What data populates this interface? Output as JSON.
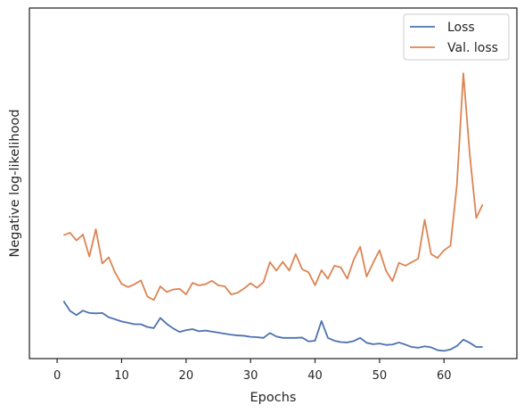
{
  "chart_data": {
    "type": "line",
    "title": "",
    "xlabel": "Epochs",
    "ylabel": "Negative log-likelihood",
    "xlim": [
      -4.3,
      71.3
    ],
    "ylim": [
      0,
      100
    ],
    "xticks": [
      0,
      10,
      20,
      30,
      40,
      50,
      60
    ],
    "yticks_visible": false,
    "grid": false,
    "legend": "top-right",
    "series": [
      {
        "name": "Loss",
        "color": "#4c72b0",
        "x": [
          1,
          2,
          3,
          4,
          5,
          6,
          7,
          8,
          9,
          10,
          11,
          12,
          13,
          14,
          15,
          16,
          17,
          18,
          19,
          20,
          21,
          22,
          23,
          24,
          25,
          26,
          27,
          28,
          29,
          30,
          31,
          32,
          33,
          34,
          35,
          36,
          37,
          38,
          39,
          40,
          41,
          42,
          43,
          44,
          45,
          46,
          47,
          48,
          49,
          50,
          51,
          52,
          53,
          54,
          55,
          56,
          57,
          58,
          59,
          60,
          61,
          62,
          63,
          64,
          65,
          66
        ],
        "values": [
          16.4,
          13.6,
          12.4,
          13.7,
          13.0,
          12.9,
          13.0,
          11.8,
          11.2,
          10.6,
          10.2,
          9.8,
          9.8,
          9.0,
          8.7,
          11.6,
          9.9,
          8.6,
          7.6,
          8.1,
          8.4,
          7.8,
          8.0,
          7.7,
          7.4,
          7.1,
          6.8,
          6.6,
          6.5,
          6.2,
          6.1,
          5.9,
          7.3,
          6.3,
          5.9,
          5.9,
          5.9,
          6.0,
          4.9,
          5.1,
          10.7,
          5.9,
          5.1,
          4.7,
          4.6,
          5.0,
          5.9,
          4.5,
          4.1,
          4.3,
          3.9,
          4.0,
          4.6,
          4.0,
          3.3,
          3.1,
          3.5,
          3.2,
          2.4,
          2.2,
          2.6,
          3.6,
          5.4,
          4.5,
          3.3,
          3.3
        ]
      },
      {
        "name": "Val. loss",
        "color": "#dd8452",
        "x": [
          1,
          2,
          3,
          4,
          5,
          6,
          7,
          8,
          9,
          10,
          11,
          12,
          13,
          14,
          15,
          16,
          17,
          18,
          19,
          20,
          21,
          22,
          23,
          24,
          25,
          26,
          27,
          28,
          29,
          30,
          31,
          32,
          33,
          34,
          35,
          36,
          37,
          38,
          39,
          40,
          41,
          42,
          43,
          44,
          45,
          46,
          47,
          48,
          49,
          50,
          51,
          52,
          53,
          54,
          55,
          56,
          57,
          58,
          59,
          60,
          61,
          62,
          63,
          64,
          65,
          66
        ],
        "values": [
          35.2,
          35.9,
          33.7,
          35.4,
          29.1,
          36.9,
          27.1,
          28.9,
          24.5,
          21.3,
          20.4,
          21.2,
          22.3,
          17.7,
          16.7,
          20.6,
          19.0,
          19.7,
          19.9,
          18.3,
          21.6,
          20.9,
          21.2,
          22.2,
          20.9,
          20.6,
          18.3,
          18.8,
          20.0,
          21.5,
          20.2,
          21.8,
          27.5,
          25.1,
          27.6,
          25.1,
          29.8,
          25.5,
          24.6,
          20.9,
          25.2,
          22.8,
          26.5,
          26.0,
          22.8,
          28.2,
          31.9,
          23.4,
          27.3,
          30.9,
          25.1,
          22.1,
          27.3,
          26.5,
          27.5,
          28.5,
          39.6,
          29.8,
          28.7,
          30.9,
          32.2,
          49.6,
          81.4,
          58.1,
          40.1,
          44.0
        ]
      }
    ]
  }
}
